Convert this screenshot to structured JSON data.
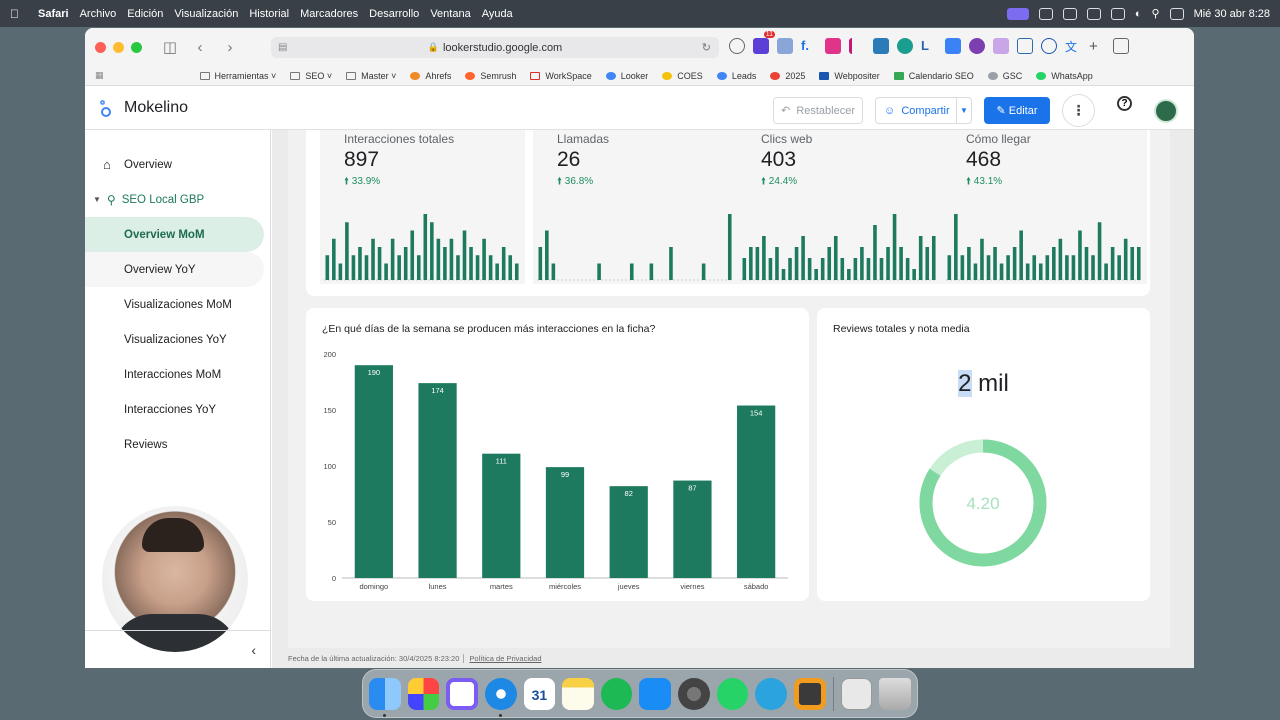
{
  "menubar": {
    "app": "Safari",
    "items": [
      "Archivo",
      "Edición",
      "Visualización",
      "Historial",
      "Marcadores",
      "Desarrollo",
      "Ventana",
      "Ayuda"
    ],
    "clock": "Mié 30 abr 8:28"
  },
  "browser": {
    "url": "lookerstudio.google.com",
    "ext_badge": "11",
    "bookmarks": [
      "Herramientas",
      "SEO",
      "Master",
      "Ahrefs",
      "Semrush",
      "WorkSpace",
      "Looker",
      "COES",
      "Leads",
      "2025",
      "Webpositer",
      "Calendario SEO",
      "GSC",
      "WhatsApp"
    ]
  },
  "header": {
    "title": "Mokelino",
    "reset_label": "Restablecer",
    "share_label": "Compartir",
    "edit_label": "Editar"
  },
  "sidebar": {
    "top": "Overview",
    "section": "SEO Local GBP",
    "items": [
      "Overview MoM",
      "Overview YoY",
      "Visualizaciones MoM",
      "Visualizaciones YoY",
      "Interacciones MoM",
      "Interacciones YoY",
      "Reviews"
    ]
  },
  "kpis": [
    {
      "label": "Interacciones totales",
      "value": "897",
      "delta": "33.9%"
    },
    {
      "label": "Llamadas",
      "value": "26",
      "delta": "36.8%"
    },
    {
      "label": "Clics web",
      "value": "403",
      "delta": "24.4%"
    },
    {
      "label": "Cómo llegar",
      "value": "468",
      "delta": "43.1%"
    }
  ],
  "sparks": [
    [
      3,
      5,
      2,
      7,
      3,
      4,
      3,
      5,
      4,
      2,
      5,
      3,
      4,
      6,
      3,
      8,
      7,
      5,
      4,
      5,
      3,
      6,
      4,
      3,
      5,
      3,
      2,
      4,
      3,
      2
    ],
    [
      2,
      3,
      1,
      0,
      0,
      0,
      0,
      0,
      0,
      1,
      0,
      0,
      0,
      0,
      1,
      0,
      0,
      1,
      0,
      0,
      2,
      0,
      0,
      0,
      0,
      1,
      0,
      0,
      0,
      4
    ],
    [
      2,
      3,
      3,
      4,
      2,
      3,
      1,
      2,
      3,
      4,
      2,
      1,
      2,
      3,
      4,
      2,
      1,
      2,
      3,
      2,
      5,
      2,
      3,
      6,
      3,
      2,
      1,
      4,
      3,
      4
    ],
    [
      3,
      8,
      3,
      4,
      2,
      5,
      3,
      4,
      2,
      3,
      4,
      6,
      2,
      3,
      2,
      3,
      4,
      5,
      3,
      3,
      6,
      4,
      3,
      7,
      2,
      4,
      3,
      5,
      4,
      4
    ]
  ],
  "weekday_chart": {
    "title": "¿En qué días de la semana se producen más interacciones en la ficha?"
  },
  "reviews": {
    "title": "Reviews totales y nota media",
    "total_prefix": "2",
    "total_suffix": " mil",
    "rating": "4.20"
  },
  "footer": {
    "updated": "Fecha de la última actualización: 30/4/2025 8:23:20",
    "privacy": "Política de Privacidad"
  },
  "colors": {
    "bar": "#1e7a5f",
    "accent": "#1a73e8",
    "donut": "#7fd89f",
    "donut_light": "#c9efd4"
  },
  "chart_data": [
    {
      "type": "bar",
      "title": "¿En qué días de la semana se producen más interacciones en la ficha?",
      "categories": [
        "domingo",
        "lunes",
        "martes",
        "miércoles",
        "jueves",
        "viernes",
        "sábado"
      ],
      "values": [
        190,
        174,
        111,
        99,
        82,
        87,
        154
      ],
      "ylim": [
        0,
        200
      ],
      "yticks": [
        0,
        50,
        100,
        150,
        200
      ],
      "xlabel": "",
      "ylabel": "",
      "grid": false
    },
    {
      "type": "pie",
      "title": "Reviews totales y nota media",
      "values": [
        4.2,
        0.8
      ],
      "center_label": "4.20"
    }
  ],
  "dock": {
    "apps": [
      "finder",
      "launchpad",
      "clickup",
      "safari",
      "calendar",
      "notes",
      "spotify",
      "appstore",
      "settings",
      "whatsapp",
      "telegram",
      "sublime",
      "preview",
      "trash"
    ],
    "calendar_day": "31"
  }
}
